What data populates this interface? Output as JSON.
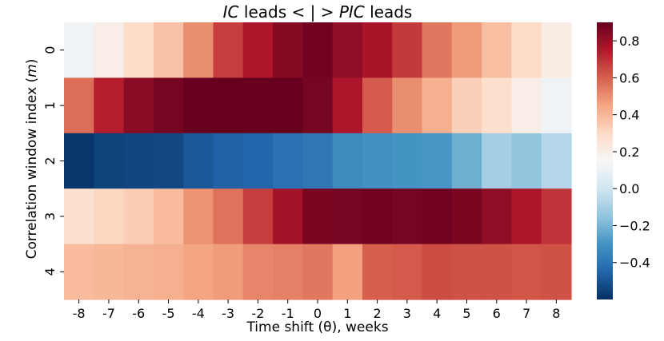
{
  "chart_data": {
    "type": "heatmap",
    "title": {
      "part1": "IC",
      "part2": " leads < | > ",
      "part3": "PIC",
      "part4": " leads"
    },
    "xlabel": "Time shift (θ), weeks",
    "ylabel": {
      "main": "Correlation window index (",
      "var": "m",
      "close": ")"
    },
    "x_categories": [
      "-8",
      "-7",
      "-6",
      "-5",
      "-4",
      "-3",
      "-2",
      "-1",
      "0",
      "1",
      "2",
      "3",
      "4",
      "5",
      "6",
      "7",
      "8"
    ],
    "y_categories": [
      "0",
      "1",
      "2",
      "3",
      "4"
    ],
    "values": [
      [
        0.12,
        0.2,
        0.29,
        0.37,
        0.5,
        0.67,
        0.76,
        0.84,
        0.88,
        0.82,
        0.77,
        0.68,
        0.55,
        0.47,
        0.38,
        0.3,
        0.21
      ],
      [
        0.57,
        0.74,
        0.83,
        0.87,
        0.9,
        0.91,
        0.91,
        0.9,
        0.87,
        0.76,
        0.61,
        0.5,
        0.42,
        0.33,
        0.28,
        0.2,
        0.12
      ],
      [
        -0.58,
        -0.55,
        -0.54,
        -0.53,
        -0.49,
        -0.46,
        -0.45,
        -0.41,
        -0.39,
        -0.33,
        -0.31,
        -0.3,
        -0.29,
        -0.22,
        -0.11,
        -0.15,
        -0.07
      ],
      [
        0.27,
        0.31,
        0.34,
        0.39,
        0.49,
        0.56,
        0.67,
        0.78,
        0.86,
        0.87,
        0.88,
        0.87,
        0.88,
        0.86,
        0.82,
        0.76,
        0.69
      ],
      [
        0.39,
        0.4,
        0.41,
        0.42,
        0.45,
        0.47,
        0.52,
        0.53,
        0.55,
        0.46,
        0.6,
        0.61,
        0.64,
        0.63,
        0.63,
        0.62,
        0.63
      ]
    ],
    "vmin": -0.6,
    "vmax": 0.9,
    "colorbar_ticks": [
      0.8,
      0.6,
      0.4,
      0.2,
      0.0,
      -0.2,
      -0.4
    ],
    "colorbar_labels": [
      "0.8",
      "0.6",
      "0.4",
      "0.2",
      "0.0",
      "−0.2",
      "−0.4"
    ],
    "colormap": "RdBu_r",
    "colormap_stops": [
      "#053061",
      "#2166ac",
      "#4393c3",
      "#92c5de",
      "#d1e5f0",
      "#f7f7f7",
      "#fddbc7",
      "#f4a582",
      "#d6604d",
      "#b2182b",
      "#67001f"
    ]
  }
}
